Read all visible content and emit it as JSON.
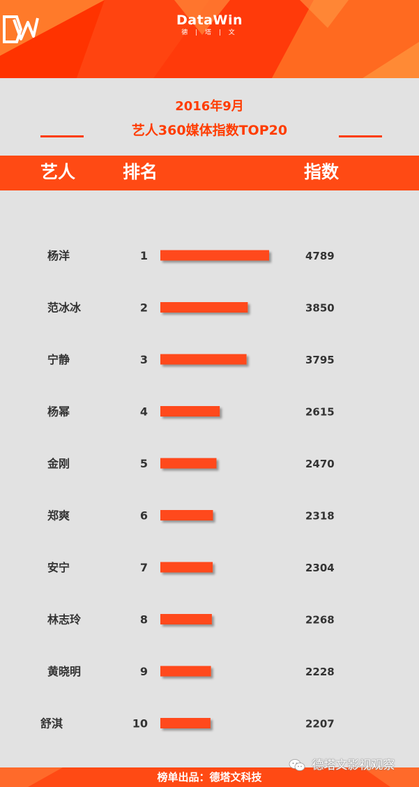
{
  "brand": {
    "name": "DataWin",
    "sub": "德 | 塔 | 文"
  },
  "title": {
    "line1": "2016年9月",
    "line2": "艺人360媒体指数TOP20"
  },
  "columns": {
    "artist": "艺人",
    "rank": "排名",
    "index": "指数"
  },
  "footer": {
    "text": "榜单出品：德塔文科技"
  },
  "watermark": {
    "text": "德塔文影视观察",
    "icon": "wechat-icon"
  },
  "colors": {
    "accent": "#ff3c00",
    "bar": "#ff4a1c",
    "band": "#ff4a14",
    "text": "#333333"
  },
  "chart_data": {
    "type": "bar",
    "orientation": "horizontal",
    "categories": [
      "杨洋",
      "范冰冰",
      "宁静",
      "杨幂",
      "金刚",
      "郑爽",
      "安宁",
      "林志玲",
      "黄晓明",
      "舒淇"
    ],
    "ranks": [
      1,
      2,
      3,
      4,
      5,
      6,
      7,
      8,
      9,
      10
    ],
    "values": [
      4789,
      3850,
      3795,
      2615,
      2470,
      2318,
      2304,
      2268,
      2228,
      2207
    ],
    "xlim": [
      0,
      4789
    ],
    "grid": false,
    "legend": "none"
  }
}
